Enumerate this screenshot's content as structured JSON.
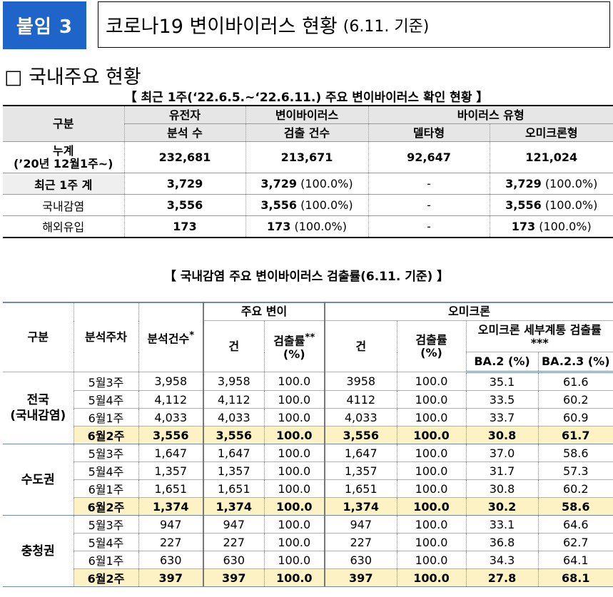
{
  "header": {
    "badge": "붙임 3",
    "title": "코로나19 변이바이러스 현황",
    "title_date": "(6.11. 기준)"
  },
  "section_title": "□ 국내주요 현황",
  "table1": {
    "caption": "【 최근 1주(‘22.6.5.~‘22.6.11.) 주요 변이바이러스 확인 현황 】",
    "headers": {
      "category": "구분",
      "analyzed_l1": "유전자",
      "analyzed_l2": "분석 수",
      "detected_l1": "변이바이러스",
      "detected_l2": "검출 건수",
      "virus_type": "바이러스 유형",
      "delta": "델타형",
      "omicron": "오미크론형"
    },
    "rows": [
      {
        "label_l1": "누계",
        "label_l2": "(’20년 12월1주~)",
        "analyzed": "232,681",
        "detected": "213,671",
        "detected_pct": "",
        "delta": "92,647",
        "omicron": "121,024",
        "omicron_pct": ""
      },
      {
        "label": "최근 1주 계",
        "analyzed": "3,729",
        "detected": "3,729",
        "detected_pct": "(100.0%)",
        "delta": "-",
        "omicron": "3,729",
        "omicron_pct": "(100.0%)"
      },
      {
        "label": "국내감염",
        "analyzed": "3,556",
        "detected": "3,556",
        "detected_pct": "(100.0%)",
        "delta": "-",
        "omicron": "3,556",
        "omicron_pct": "(100.0%)"
      },
      {
        "label": "해외유입",
        "analyzed": "173",
        "detected": "173",
        "detected_pct": "(100.0%)",
        "delta": "-",
        "omicron": "173",
        "omicron_pct": "(100.0%)"
      }
    ]
  },
  "table2": {
    "caption": "【 국내감염 주요 변이바이러스 검출률(6.11. 기준) 】",
    "headers": {
      "category": "구분",
      "week": "분석주차",
      "analyzed": "분석건수",
      "analyzed_mark": "*",
      "major_variant": "주요 변이",
      "count": "건",
      "rate_l1": "검출률",
      "rate_mark": "**",
      "rate_l2": "(%)",
      "omicron": "오미크론",
      "omicron_count": "건",
      "omicron_rate_l1": "검출률",
      "omicron_rate_l2": "(%)",
      "sublineage": "오미크론 세부계통 검출률***",
      "ba2": "BA.2 (%)",
      "ba23": "BA.2.3 (%)"
    },
    "groups": [
      {
        "region_l1": "전국",
        "region_l2": "(국내감염)",
        "rows": [
          {
            "week": "5월3주",
            "analyzed": "3,958",
            "count": "3,958",
            "rate": "100.0",
            "om_count": "3958",
            "om_rate": "100.0",
            "ba2": "35.1",
            "ba23": "61.6"
          },
          {
            "week": "5월4주",
            "analyzed": "4,112",
            "count": "4,112",
            "rate": "100.0",
            "om_count": "4112",
            "om_rate": "100.0",
            "ba2": "33.5",
            "ba23": "60.2"
          },
          {
            "week": "6월1주",
            "analyzed": "4,033",
            "count": "4,033",
            "rate": "100.0",
            "om_count": "4,033",
            "om_rate": "100.0",
            "ba2": "33.7",
            "ba23": "60.9"
          },
          {
            "week": "6월2주",
            "analyzed": "3,556",
            "count": "3,556",
            "rate": "100.0",
            "om_count": "3,556",
            "om_rate": "100.0",
            "ba2": "30.8",
            "ba23": "61.7"
          }
        ]
      },
      {
        "region_l1": "수도권",
        "region_l2": "",
        "rows": [
          {
            "week": "5월3주",
            "analyzed": "1,647",
            "count": "1,647",
            "rate": "100.0",
            "om_count": "1,647",
            "om_rate": "100.0",
            "ba2": "37.0",
            "ba23": "58.6"
          },
          {
            "week": "5월4주",
            "analyzed": "1,357",
            "count": "1,357",
            "rate": "100.0",
            "om_count": "1,357",
            "om_rate": "100.0",
            "ba2": "31.7",
            "ba23": "57.3"
          },
          {
            "week": "6월1주",
            "analyzed": "1,651",
            "count": "1,651",
            "rate": "100.0",
            "om_count": "1,651",
            "om_rate": "100.0",
            "ba2": "30.8",
            "ba23": "60.2"
          },
          {
            "week": "6월2주",
            "analyzed": "1,374",
            "count": "1,374",
            "rate": "100.0",
            "om_count": "1,374",
            "om_rate": "100.0",
            "ba2": "30.2",
            "ba23": "58.6"
          }
        ]
      },
      {
        "region_l1": "충청권",
        "region_l2": "",
        "rows": [
          {
            "week": "5월3주",
            "analyzed": "947",
            "count": "947",
            "rate": "100.0",
            "om_count": "947",
            "om_rate": "100.0",
            "ba2": "33.1",
            "ba23": "64.6"
          },
          {
            "week": "5월4주",
            "analyzed": "227",
            "count": "227",
            "rate": "100.0",
            "om_count": "227",
            "om_rate": "100.0",
            "ba2": "36.8",
            "ba23": "62.7"
          },
          {
            "week": "6월1주",
            "analyzed": "630",
            "count": "630",
            "rate": "100.0",
            "om_count": "630",
            "om_rate": "100.0",
            "ba2": "34.3",
            "ba23": "64.1"
          },
          {
            "week": "6월2주",
            "analyzed": "397",
            "count": "397",
            "rate": "100.0",
            "om_count": "397",
            "om_rate": "100.0",
            "ba2": "27.8",
            "ba23": "68.1"
          }
        ]
      }
    ]
  }
}
